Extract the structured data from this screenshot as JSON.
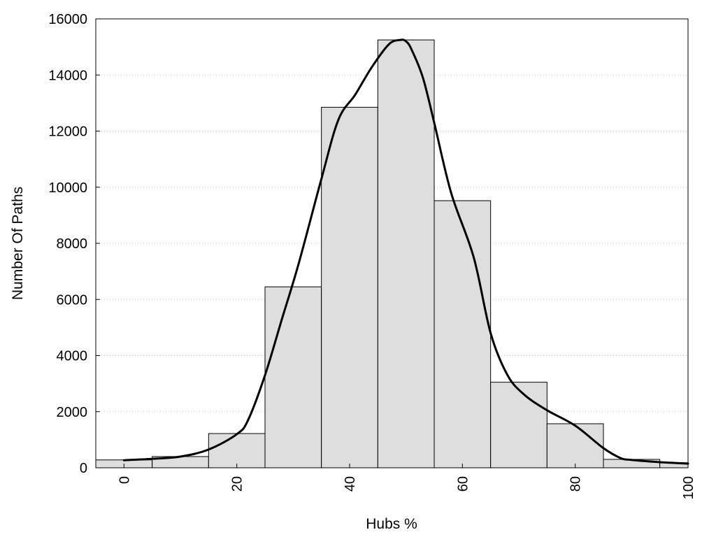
{
  "chart_data": {
    "type": "bar",
    "title": "",
    "xlabel": "Hubs %",
    "ylabel": "Number Of Paths",
    "xlim": [
      -5,
      100
    ],
    "ylim": [
      0,
      16000
    ],
    "grid": true,
    "x_ticks": [
      0,
      20,
      40,
      60,
      80,
      100
    ],
    "y_ticks": [
      0,
      2000,
      4000,
      6000,
      8000,
      10000,
      12000,
      14000,
      16000
    ],
    "bars": [
      {
        "x0": -5,
        "x1": 5,
        "value": 280
      },
      {
        "x0": 5,
        "x1": 15,
        "value": 400
      },
      {
        "x0": 15,
        "x1": 25,
        "value": 1220
      },
      {
        "x0": 25,
        "x1": 35,
        "value": 6450
      },
      {
        "x0": 35,
        "x1": 45,
        "value": 12850
      },
      {
        "x0": 45,
        "x1": 55,
        "value": 15250
      },
      {
        "x0": 55,
        "x1": 65,
        "value": 9520
      },
      {
        "x0": 65,
        "x1": 75,
        "value": 3050
      },
      {
        "x0": 75,
        "x1": 85,
        "value": 1570
      },
      {
        "x0": 85,
        "x1": 95,
        "value": 300
      },
      {
        "x0": 95,
        "x1": 100,
        "value": 180
      }
    ],
    "density_curve": {
      "x": [
        0,
        5,
        10,
        15,
        20,
        22,
        25,
        28,
        31,
        35,
        38,
        41,
        44,
        47,
        49,
        50,
        51,
        53,
        55,
        58,
        62,
        65,
        68,
        71,
        75,
        80,
        85,
        88,
        90,
        95,
        100
      ],
      "y": [
        270,
        320,
        400,
        650,
        1200,
        1700,
        3300,
        5300,
        7300,
        10300,
        12400,
        13300,
        14300,
        15100,
        15250,
        15200,
        14900,
        13900,
        12300,
        9800,
        7500,
        4800,
        3300,
        2600,
        2050,
        1500,
        700,
        350,
        280,
        200,
        150
      ]
    }
  }
}
